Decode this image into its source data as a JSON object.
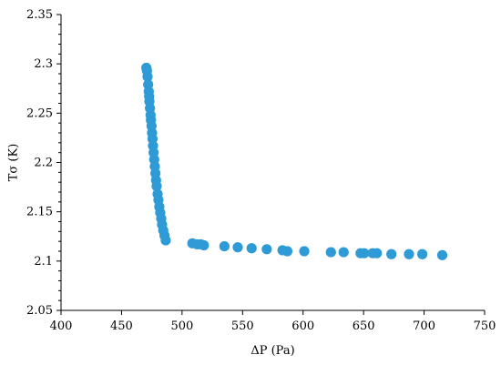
{
  "chart_data": {
    "type": "scatter",
    "title": "",
    "xlabel": "ΔP (Pa)",
    "ylabel": "Tσ (K)",
    "xlim": [
      400,
      750
    ],
    "ylim": [
      2.05,
      2.35
    ],
    "x_ticks": [
      "400",
      "450",
      "500",
      "550",
      "600",
      "650",
      "700",
      "750"
    ],
    "y_ticks": [
      "2.05",
      "2.1",
      "2.15",
      "2.2",
      "2.25",
      "2.3",
      "2.35"
    ],
    "grid": false,
    "legend": "none",
    "marker_color": "#2E9BD6",
    "series": [
      {
        "points": [
          [
            470.5,
            2.296
          ],
          [
            471.0,
            2.293
          ],
          [
            471.5,
            2.287
          ],
          [
            472.0,
            2.279
          ],
          [
            472.5,
            2.272
          ],
          [
            472.8,
            2.267
          ],
          [
            473.0,
            2.262
          ],
          [
            473.5,
            2.255
          ],
          [
            474.0,
            2.248
          ],
          [
            474.3,
            2.243
          ],
          [
            474.8,
            2.237
          ],
          [
            475.2,
            2.23
          ],
          [
            475.6,
            2.224
          ],
          [
            476.0,
            2.217
          ],
          [
            476.5,
            2.21
          ],
          [
            477.0,
            2.203
          ],
          [
            477.5,
            2.196
          ],
          [
            478.0,
            2.189
          ],
          [
            478.5,
            2.182
          ],
          [
            479.0,
            2.176
          ],
          [
            479.8,
            2.168
          ],
          [
            480.5,
            2.162
          ],
          [
            481.2,
            2.155
          ],
          [
            482.0,
            2.149
          ],
          [
            482.8,
            2.143
          ],
          [
            483.5,
            2.137
          ],
          [
            484.5,
            2.131
          ],
          [
            485.5,
            2.126
          ],
          [
            486.5,
            2.121
          ],
          [
            508.5,
            2.118
          ],
          [
            512.5,
            2.117
          ],
          [
            515.5,
            2.117
          ],
          [
            518.0,
            2.116
          ],
          [
            535.0,
            2.115
          ],
          [
            546.0,
            2.114
          ],
          [
            557.5,
            2.113
          ],
          [
            570.0,
            2.112
          ],
          [
            583.0,
            2.111
          ],
          [
            587.0,
            2.11
          ],
          [
            601.0,
            2.11
          ],
          [
            623.0,
            2.109
          ],
          [
            633.5,
            2.109
          ],
          [
            647.5,
            2.108
          ],
          [
            650.5,
            2.108
          ],
          [
            657.5,
            2.108
          ],
          [
            661.0,
            2.108
          ],
          [
            673.0,
            2.107
          ],
          [
            687.5,
            2.107
          ],
          [
            698.5,
            2.107
          ],
          [
            715.0,
            2.106
          ]
        ]
      }
    ]
  }
}
